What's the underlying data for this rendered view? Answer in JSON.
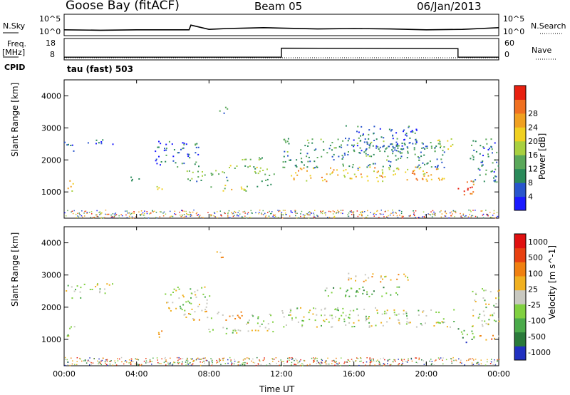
{
  "header": {
    "station": "Goose Bay (fitACF)",
    "beam": "Beam 05",
    "date": "06/Jan/2013"
  },
  "strip_labels": {
    "nsky": "N.Sky",
    "nsky_ticks": [
      "10^5",
      "10^0"
    ],
    "nsearch": "N.Search",
    "nsearch_ticks": [
      "10^5",
      "10^0"
    ],
    "freq": "Freq.",
    "freq_unit": "[MHz]",
    "freq_ticks": [
      "18",
      "8"
    ],
    "nave": "Nave",
    "nave_ticks": [
      "60",
      "0"
    ],
    "cpid": "CPID",
    "cpid_value": "tau (fast) 503"
  },
  "chart_data": [
    {
      "type": "line",
      "title": "",
      "ylabel": "N.Sky / N.Search",
      "series": [
        {
          "name": "N.Sky",
          "x": [
            0,
            2,
            4,
            6,
            6.9,
            7,
            8,
            9,
            10,
            11,
            12,
            14,
            16,
            18,
            20,
            22,
            23,
            24
          ],
          "y": [
            1.2,
            1.1,
            1.2,
            1.2,
            1.2,
            2.3,
            1.3,
            1.5,
            1.6,
            1.7,
            1.6,
            1.4,
            1.5,
            1.4,
            1.2,
            1.3,
            1.5,
            1.7
          ]
        }
      ]
    },
    {
      "type": "line",
      "title": "",
      "ylabel": "Freq. [MHz]",
      "series": [
        {
          "name": "Freq.",
          "x": [
            0,
            12,
            12,
            21.75,
            21.75,
            24
          ],
          "y": [
            9,
            9,
            13.5,
            13.3,
            9,
            9
          ]
        }
      ],
      "ylim": [
        8,
        18
      ]
    },
    {
      "type": "heatmap",
      "title": "",
      "xlabel": "",
      "ylabel": "Slant Range [km]",
      "y_ticks": [
        "1000",
        "2000",
        "3000",
        "4000"
      ],
      "colorbar_label": "Power [dB]",
      "colorbar_ticks": [
        "4",
        "8",
        "12",
        "16",
        "20",
        "24",
        "28"
      ],
      "colorbar_colors": [
        "#1a1aff",
        "#2855cc",
        "#2a8a5a",
        "#5aa85a",
        "#a8d040",
        "#f0d020",
        "#f0a020",
        "#f07020",
        "#e82010"
      ],
      "regions": [
        {
          "t0": 0.0,
          "t1": 0.6,
          "r0": 2200,
          "r1": 2600,
          "level": 0.2
        },
        {
          "t0": 0.0,
          "t1": 0.5,
          "r0": 1000,
          "r1": 1400,
          "level": 0.55
        },
        {
          "t0": 1.2,
          "t1": 2.8,
          "r0": 2500,
          "r1": 2700,
          "level": 0.15
        },
        {
          "t0": 3.5,
          "t1": 4.2,
          "r0": 1300,
          "r1": 1500,
          "level": 0.25
        },
        {
          "t0": 5.0,
          "t1": 5.4,
          "r0": 950,
          "r1": 1350,
          "level": 0.5
        },
        {
          "t0": 5.0,
          "t1": 7.5,
          "r0": 1800,
          "r1": 2600,
          "level": 0.2
        },
        {
          "t0": 6.5,
          "t1": 9.0,
          "r0": 1350,
          "r1": 1700,
          "level": 0.35
        },
        {
          "t0": 7.8,
          "t1": 10.2,
          "r0": 1050,
          "r1": 1250,
          "level": 0.55
        },
        {
          "t0": 8.5,
          "t1": 9.0,
          "r0": 3450,
          "r1": 3750,
          "level": 0.35
        },
        {
          "t0": 9.0,
          "t1": 11.0,
          "r0": 1750,
          "r1": 2100,
          "level": 0.45
        },
        {
          "t0": 10.5,
          "t1": 11.6,
          "r0": 1150,
          "r1": 1750,
          "level": 0.4
        },
        {
          "t0": 12.0,
          "t1": 21.0,
          "r0": 1750,
          "r1": 2700,
          "level": 0.3
        },
        {
          "t0": 12.5,
          "t1": 21.0,
          "r0": 1350,
          "r1": 1800,
          "level": 0.65
        },
        {
          "t0": 15.5,
          "t1": 19.5,
          "r0": 2300,
          "r1": 3100,
          "level": 0.2
        },
        {
          "t0": 20.5,
          "t1": 21.5,
          "r0": 2300,
          "r1": 2700,
          "level": 0.5
        },
        {
          "t0": 21.5,
          "t1": 22.6,
          "r0": 900,
          "r1": 1400,
          "level": 0.85
        },
        {
          "t0": 22.4,
          "t1": 24.0,
          "r0": 1300,
          "r1": 2700,
          "level": 0.25
        }
      ]
    },
    {
      "type": "heatmap",
      "title": "",
      "xlabel": "Time UT",
      "ylabel": "Slant Range [km]",
      "x_ticks": [
        "00:00",
        "04:00",
        "08:00",
        "12:00",
        "16:00",
        "20:00",
        "00:00"
      ],
      "y_ticks": [
        "1000",
        "2000",
        "3000",
        "4000"
      ],
      "colorbar_label": "Velocity [m s^-1]",
      "colorbar_ticks": [
        "1000",
        "500",
        "100",
        "25",
        "-25",
        "-100",
        "-500",
        "-1000"
      ],
      "colorbar_colors": [
        "#2030c0",
        "#2a7a3a",
        "#4aaa4a",
        "#80d040",
        "#c8c8c0",
        "#f0b020",
        "#f08010",
        "#e84010",
        "#e01010"
      ],
      "regions": [
        {
          "t0": 0.0,
          "t1": 1.0,
          "r0": 2300,
          "r1": 2700,
          "level": 0.45
        },
        {
          "t0": 0.0,
          "t1": 0.6,
          "r0": 1100,
          "r1": 1500,
          "level": 0.45
        },
        {
          "t0": 1.0,
          "t1": 2.8,
          "r0": 2450,
          "r1": 2750,
          "level": 0.45
        },
        {
          "t0": 5.0,
          "t1": 5.4,
          "r0": 1000,
          "r1": 1350,
          "level": 0.7
        },
        {
          "t0": 5.5,
          "t1": 8.0,
          "r0": 1900,
          "r1": 2650,
          "level": 0.45
        },
        {
          "t0": 6.5,
          "t1": 10.0,
          "r0": 1600,
          "r1": 1900,
          "level": 0.6
        },
        {
          "t0": 7.5,
          "t1": 10.3,
          "r0": 1200,
          "r1": 1400,
          "level": 0.45
        },
        {
          "t0": 8.4,
          "t1": 9.0,
          "r0": 3450,
          "r1": 3750,
          "level": 0.65
        },
        {
          "t0": 10.0,
          "t1": 11.6,
          "r0": 1200,
          "r1": 1800,
          "level": 0.45
        },
        {
          "t0": 12.0,
          "t1": 21.5,
          "r0": 1400,
          "r1": 2000,
          "level": 0.45
        },
        {
          "t0": 14.0,
          "t1": 18.5,
          "r0": 2350,
          "r1": 2650,
          "level": 0.3
        },
        {
          "t0": 15.5,
          "t1": 19.0,
          "r0": 2800,
          "r1": 3100,
          "level": 0.6
        },
        {
          "t0": 21.5,
          "t1": 22.6,
          "r0": 900,
          "r1": 1350,
          "level": 0.25
        },
        {
          "t0": 22.6,
          "t1": 24.0,
          "r0": 1000,
          "r1": 1200,
          "level": 0.7
        },
        {
          "t0": 22.5,
          "t1": 24.0,
          "r0": 1400,
          "r1": 2600,
          "level": 0.45
        }
      ]
    }
  ]
}
